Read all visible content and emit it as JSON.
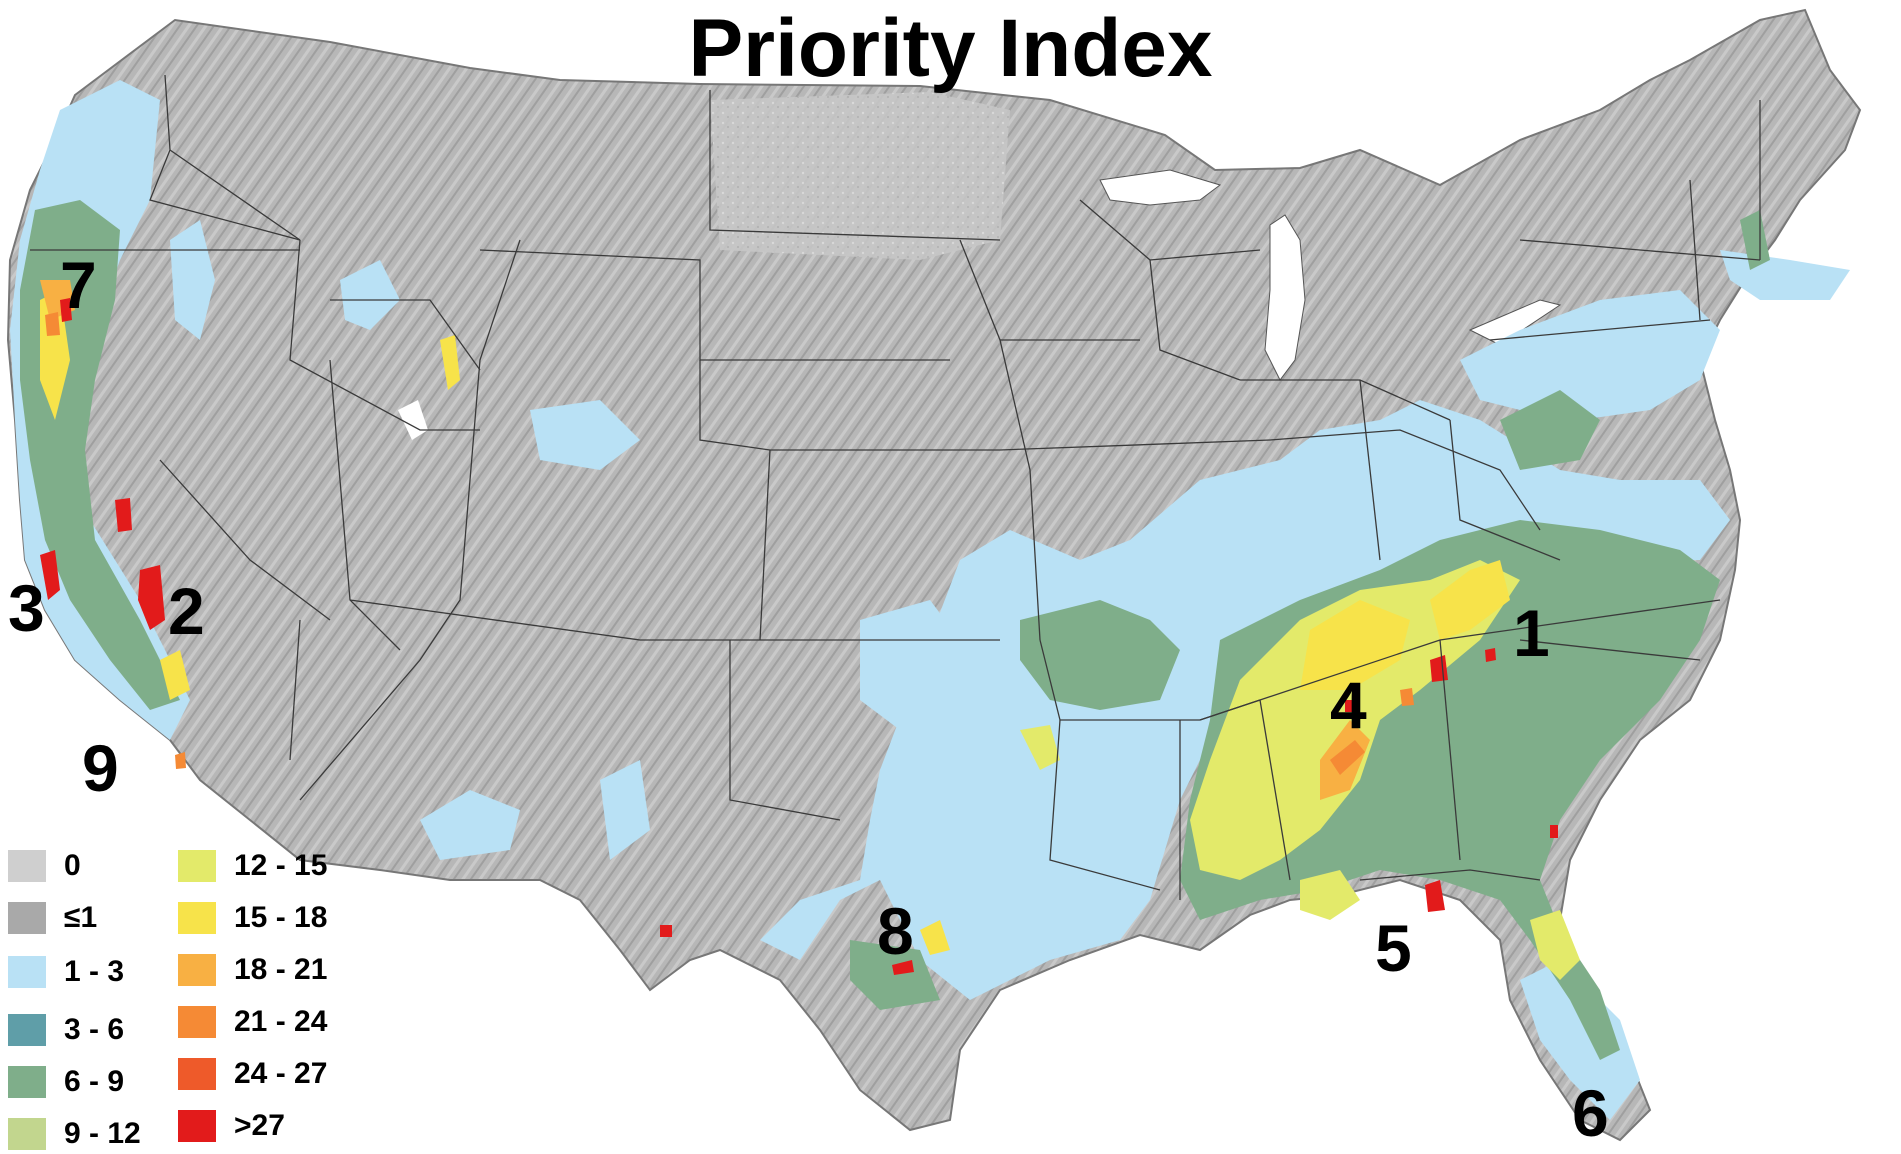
{
  "title": "Priority Index",
  "region_labels": [
    "1",
    "2",
    "3",
    "4",
    "5",
    "6",
    "7",
    "8",
    "9"
  ],
  "legend": [
    {
      "label": "0",
      "color": "#cfcfcf"
    },
    {
      "label": "≤1",
      "color": "#a9a9a9"
    },
    {
      "label": "1 - 3",
      "color": "#b9e1f5"
    },
    {
      "label": "3 - 6",
      "color": "#5f9ea8"
    },
    {
      "label": "6 - 9",
      "color": "#7fae8a"
    },
    {
      "label": "9 - 12",
      "color": "#c2d68e"
    },
    {
      "label": "12 - 15",
      "color": "#e3ea6a"
    },
    {
      "label": "15 - 18",
      "color": "#f7e34a"
    },
    {
      "label": "18 - 21",
      "color": "#f8b043"
    },
    {
      "label": "21 - 24",
      "color": "#f58a35"
    },
    {
      "label": "24 - 27",
      "color": "#ee5a2a"
    },
    {
      "label": ">27",
      "color": "#e21b1b"
    }
  ],
  "colors": {
    "land": "#b9b9b9",
    "border": "#3a3a3a",
    "light_blue": "#b9e1f5",
    "green": "#7fae8a",
    "yellow": "#e3ea6a",
    "orange": "#f58a35",
    "red": "#e21b1b"
  }
}
